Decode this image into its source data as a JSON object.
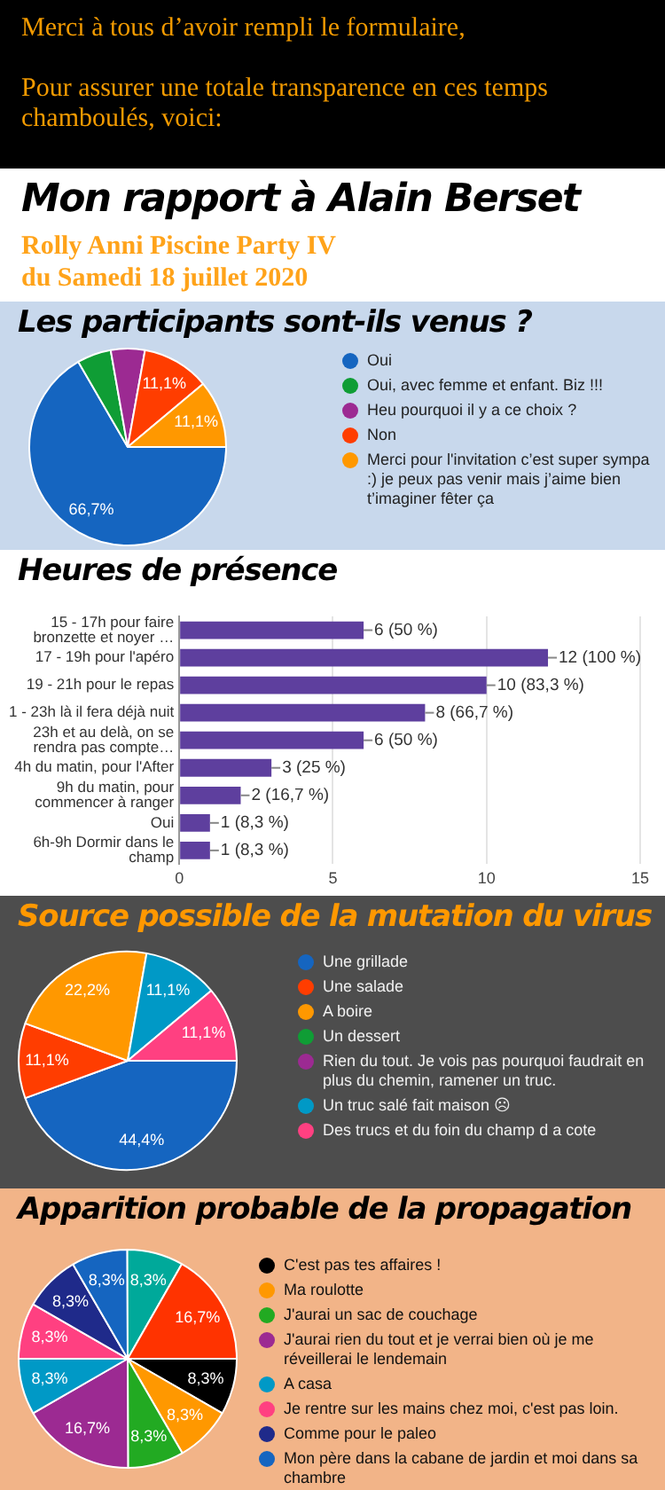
{
  "chart_data": [
    {
      "type": "other",
      "title": "Mon rapport à Alain Berset",
      "subtitle": "Rolly Anni Piscine Party IV\ndu Samedi 18 juillet 2020",
      "annotations": [
        "Merci à tous d’avoir rempli le formulaire,",
        "Pour assurer une totale transparence en ces temps chamboulés, voici:"
      ]
    },
    {
      "type": "pie",
      "title": "Les participants sont-ils venus ?",
      "categories": [
        "Oui",
        "Oui, avec femme et enfant. Biz !!!",
        "Heu pourquoi il y a ce choix ?",
        "Non",
        "Merci pour l'invitation c’est super sympa :) je peux pas venir mais j’aime bien t’imaginer fêter ça"
      ],
      "values": [
        66.7,
        5.6,
        5.6,
        11.1,
        11.1
      ],
      "colors": [
        "#1565c0",
        "#0f9d35",
        "#9c2a92",
        "#ff3d00",
        "#ff9800"
      ],
      "value_labels": [
        "66,7%",
        null,
        null,
        "11,1%",
        "11,1%"
      ],
      "legend": "right"
    },
    {
      "type": "bar",
      "orientation": "horizontal",
      "title": "Heures de présence",
      "categories": [
        "15 - 17h pour faire bronzette et noyer …",
        "17 - 19h pour l'apéro",
        "19 - 21h pour le repas",
        "1 - 23h là il fera déjà nuit",
        "23h et au delà, on se rendra pas compte…",
        "4h du matin, pour l'After",
        "9h du matin, pour commencer à ranger",
        "Oui",
        "6h-9h Dormir dans le champ"
      ],
      "values": [
        6,
        12,
        10,
        8,
        6,
        3,
        2,
        1,
        1
      ],
      "color": "#5e3f9e",
      "value_labels": [
        "6 (50 %)",
        "12 (100 %)",
        "10 (83,3 %)",
        "8 (66,7 %)",
        "6 (50 %)",
        "3 (25 %)",
        "2 (16,7 %)",
        "1 (8,3 %)",
        "1 (8,3 %)"
      ],
      "xlim": [
        0,
        15
      ],
      "xticks": [
        0,
        5,
        10,
        15
      ],
      "grid": "x"
    },
    {
      "type": "pie",
      "title": "Source possible de la mutation du virus",
      "categories": [
        "Une grillade",
        "Une salade",
        "A boire",
        "Un dessert",
        "Rien du tout. Je vois pas pourquoi faudrait en plus du chemin, ramener un truc.",
        "Un truc salé fait maison ☹",
        "Des trucs et du foin du champ d a cote"
      ],
      "values": [
        44.4,
        11.1,
        22.2,
        0,
        0,
        11.1,
        11.1
      ],
      "colors": [
        "#1565c0",
        "#ff3d00",
        "#ff9800",
        "#0f9d35",
        "#9c2a92",
        "#0099c6",
        "#ff4081"
      ],
      "value_labels": [
        "44,4%",
        "11,1%",
        "22,2%",
        null,
        null,
        "11,1%",
        "11,1%"
      ],
      "legend": "right"
    },
    {
      "type": "pie",
      "title": "Apparition probable de la propagation",
      "categories": [
        "C'est pas tes affaires !",
        "Ma roulotte",
        "J'aurai un sac de couchage",
        "J'aurai rien du tout et je verrai bien où je me réveillerai le lendemain",
        "A casa",
        "Je rentre sur les mains chez moi, c'est pas loin.",
        "Comme pour le paleo",
        "Mon père dans la cabane de jardin et moi dans sa chambre",
        null,
        null
      ],
      "values": [
        8.3,
        8.3,
        8.3,
        16.7,
        8.3,
        8.3,
        8.3,
        8.3,
        8.3,
        16.7
      ],
      "colors": [
        "#000000",
        "#ff9800",
        "#22aa22",
        "#9c2a92",
        "#0099c6",
        "#ff4081",
        "#1f2a8a",
        "#1565c0",
        "#00a99a",
        "#ff3300"
      ],
      "value_labels": [
        "8,3%",
        "8,3%",
        "8,3%",
        "16,7%",
        "8,3%",
        "8,3%",
        "8,3%",
        "8,3%",
        "8,3%",
        "16,7%"
      ],
      "legend": "right"
    }
  ]
}
